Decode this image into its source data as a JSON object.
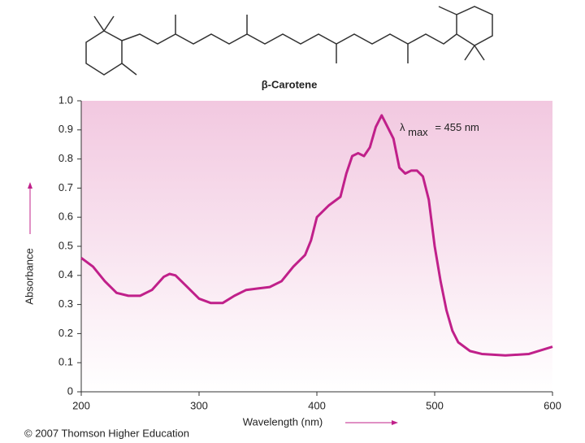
{
  "chart_data": {
    "type": "line",
    "title": "β-Carotene",
    "x_label": "Wavelength (nm)",
    "y_label": "Absorbance",
    "annotation": {
      "symbol": "λ",
      "subscript": "max",
      "text": "= 455 nm"
    },
    "copyright": "© 2007 Thomson Higher Education",
    "x": [
      200,
      210,
      220,
      230,
      240,
      250,
      260,
      270,
      275,
      280,
      290,
      300,
      310,
      320,
      330,
      340,
      350,
      360,
      370,
      380,
      390,
      395,
      400,
      410,
      420,
      425,
      430,
      435,
      440,
      445,
      450,
      455,
      460,
      465,
      470,
      475,
      480,
      485,
      490,
      495,
      500,
      505,
      510,
      515,
      520,
      530,
      540,
      560,
      580,
      600
    ],
    "values": [
      0.46,
      0.43,
      0.38,
      0.34,
      0.33,
      0.33,
      0.35,
      0.395,
      0.405,
      0.4,
      0.36,
      0.32,
      0.305,
      0.305,
      0.33,
      0.35,
      0.355,
      0.36,
      0.38,
      0.43,
      0.47,
      0.52,
      0.6,
      0.64,
      0.67,
      0.75,
      0.81,
      0.82,
      0.81,
      0.84,
      0.91,
      0.95,
      0.91,
      0.87,
      0.77,
      0.75,
      0.76,
      0.76,
      0.74,
      0.66,
      0.5,
      0.38,
      0.28,
      0.21,
      0.17,
      0.14,
      0.13,
      0.125,
      0.13,
      0.155
    ],
    "color": "#c0208a",
    "xlim": [
      200,
      600
    ],
    "xticks": [
      200,
      300,
      400,
      500,
      600
    ],
    "ylim": [
      0,
      1
    ],
    "yticks": [
      0,
      0.1,
      0.2,
      0.3,
      0.4,
      0.5,
      0.6,
      0.7,
      0.8,
      0.9,
      {
        "value": 1,
        "label": "1.0"
      }
    ]
  }
}
